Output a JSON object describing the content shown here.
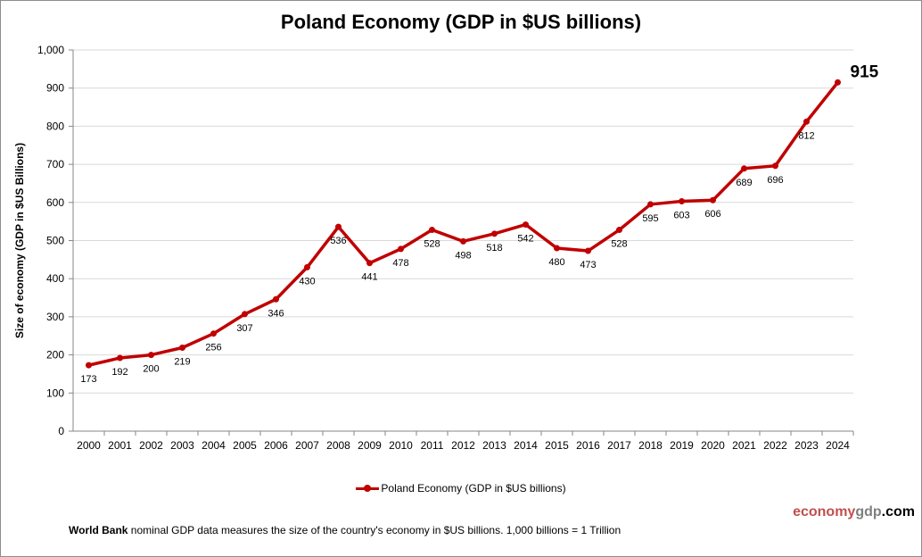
{
  "chart_data": {
    "type": "line",
    "title": "Poland Economy (GDP in $US billions)",
    "xlabel": "",
    "ylabel": "Size of economy (GDP in $US Billions)",
    "ylim": [
      0,
      1000
    ],
    "yticks": [
      "0",
      "100",
      "200",
      "300",
      "400",
      "500",
      "600",
      "700",
      "800",
      "900",
      "1,000"
    ],
    "grid": true,
    "legend_position": "bottom",
    "categories": [
      "2000",
      "2001",
      "2002",
      "2003",
      "2004",
      "2005",
      "2006",
      "2007",
      "2008",
      "2009",
      "2010",
      "2011",
      "2012",
      "2013",
      "2014",
      "2015",
      "2016",
      "2017",
      "2018",
      "2019",
      "2020",
      "2021",
      "2022",
      "2023",
      "2024"
    ],
    "series": [
      {
        "name": "Poland Economy (GDP in $US billions)",
        "values": [
          173,
          192,
          200,
          219,
          256,
          307,
          346,
          430,
          536,
          441,
          478,
          528,
          498,
          518,
          542,
          480,
          473,
          528,
          595,
          603,
          606,
          689,
          696,
          812,
          915
        ],
        "color": "#c00000"
      }
    ]
  },
  "brand": {
    "part1": "economy",
    "part2": "gdp",
    "part3": ".com",
    "color1": "#c0504d",
    "color2": "#7f7f7f"
  },
  "note": {
    "bold": "World Bank",
    "text": " nominal GDP data  measures the size of the country's economy in $US billions. 1,000 billions = 1 Trillion"
  }
}
